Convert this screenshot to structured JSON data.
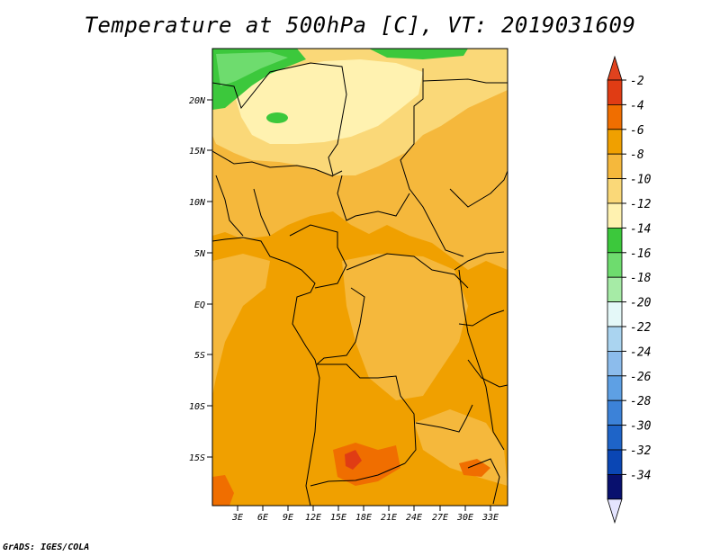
{
  "title": "Temperature at 500hPa [C], VT: 2019031609",
  "credit": "GrADS: IGES/COLA",
  "map": {
    "lat_labels": [
      "20N",
      "15N",
      "10N",
      "5N",
      "EQ",
      "5S",
      "10S",
      "15S"
    ],
    "lon_labels": [
      "3E",
      "6E",
      "9E",
      "12E",
      "15E",
      "18E",
      "21E",
      "24E",
      "27E",
      "30E",
      "33E"
    ]
  },
  "colorbar": {
    "labels": [
      "-2",
      "-4",
      "-6",
      "-8",
      "-10",
      "-12",
      "-14",
      "-16",
      "-18",
      "-20",
      "-22",
      "-24",
      "-26",
      "-28",
      "-30",
      "-32",
      "-34"
    ],
    "colors": [
      "#e03c14",
      "#f06e00",
      "#f0a000",
      "#f5b83c",
      "#fad878",
      "#fff2b0",
      "#3cc83c",
      "#6edc6e",
      "#a6eba6",
      "#e4f8f8",
      "#aad4f0",
      "#8cbcec",
      "#5ea0e4",
      "#3c82d8",
      "#1e64c8",
      "#0a46b4",
      "#08106e"
    ],
    "top_arrow_color": "#e0421e",
    "bottom_arrow_color": "#e4e4ff"
  }
}
